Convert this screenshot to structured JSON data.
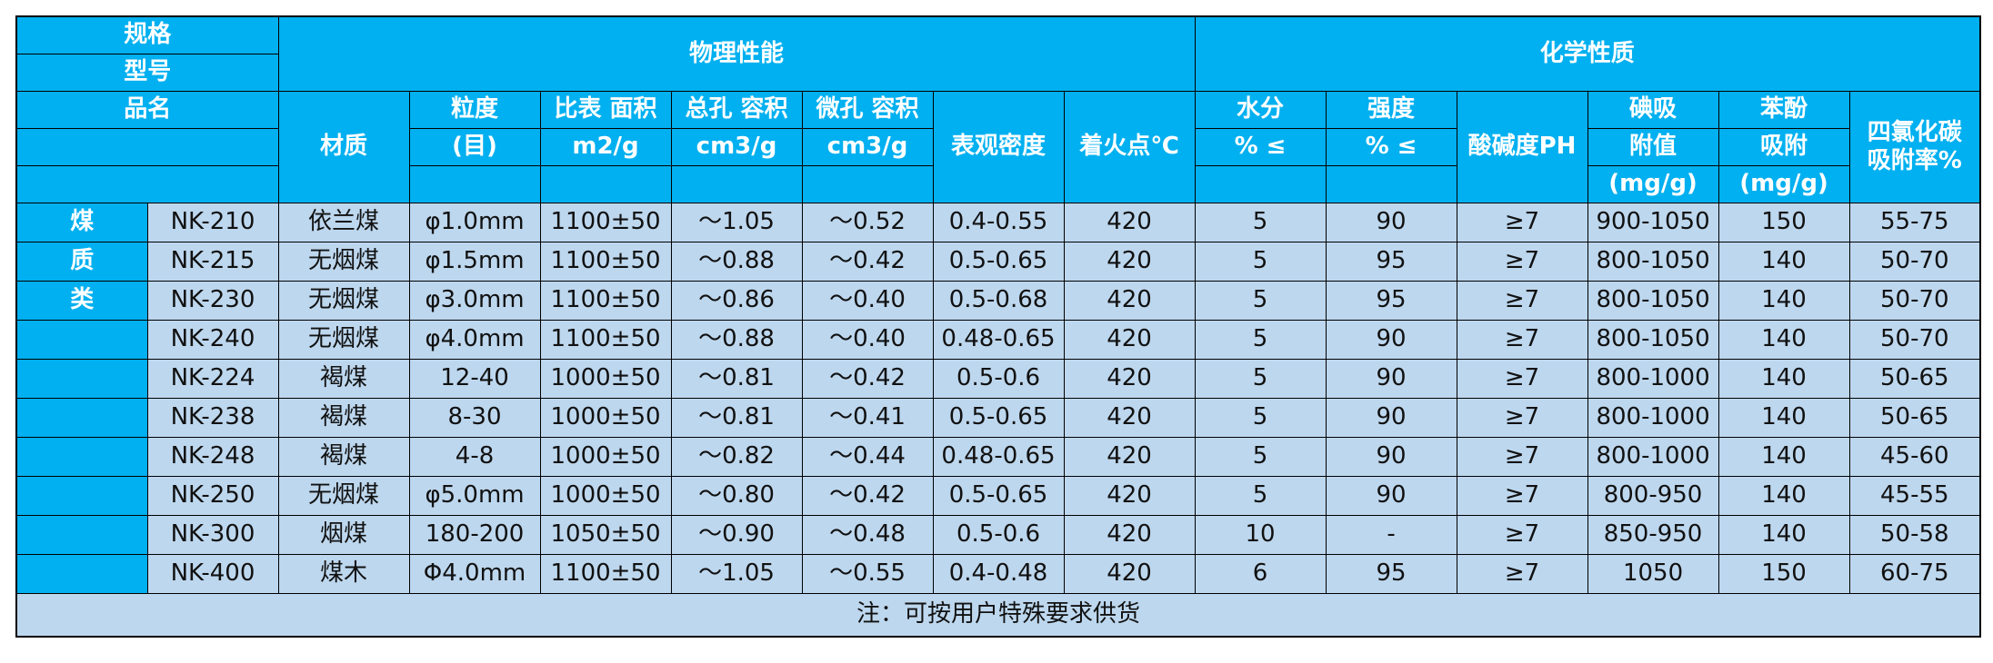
{
  "header": {
    "corner": [
      "规格",
      "型号",
      "品名"
    ],
    "groups": [
      "物理性能",
      "化学性质"
    ],
    "columns": [
      [
        "材质"
      ],
      [
        "粒度",
        "(目)"
      ],
      [
        "比表 面积",
        "m2/g"
      ],
      [
        "总孔 容积",
        "cm3/g"
      ],
      [
        "微孔 容积",
        "cm3/g"
      ],
      [
        "表观密度"
      ],
      [
        "着火点℃"
      ],
      [
        "水分",
        "% ≤"
      ],
      [
        "强度",
        "% ≤"
      ],
      [
        "酸碱度PH"
      ],
      [
        "碘吸",
        "附值",
        "(mg/g)"
      ],
      [
        "苯酚",
        "吸附",
        "(mg/g)"
      ],
      [
        "四氯化碳",
        "吸附率%"
      ]
    ]
  },
  "table": {
    "category": [
      "煤",
      "质",
      "类"
    ],
    "rows": [
      [
        "NK-210",
        "依兰煤",
        "φ1.0mm",
        "1100±50",
        "～1.05",
        "～0.52",
        "0.4-0.55",
        "420",
        "5",
        "90",
        "≥7",
        "900-1050",
        "150",
        "55-75"
      ],
      [
        "NK-215",
        "无烟煤",
        "φ1.5mm",
        "1100±50",
        "～0.88",
        "～0.42",
        "0.5-0.65",
        "420",
        "5",
        "95",
        "≥7",
        "800-1050",
        "140",
        "50-70"
      ],
      [
        "NK-230",
        "无烟煤",
        "φ3.0mm",
        "1100±50",
        "～0.86",
        "～0.40",
        "0.5-0.68",
        "420",
        "5",
        "95",
        "≥7",
        "800-1050",
        "140",
        "50-70"
      ],
      [
        "NK-240",
        "无烟煤",
        "φ4.0mm",
        "1100±50",
        "～0.88",
        "～0.40",
        "0.48-0.65",
        "420",
        "5",
        "90",
        "≥7",
        "800-1050",
        "140",
        "50-70"
      ],
      [
        "NK-224",
        "褐煤",
        "12-40",
        "1000±50",
        "～0.81",
        "～0.42",
        "0.5-0.6",
        "420",
        "5",
        "90",
        "≥7",
        "800-1000",
        "140",
        "50-65"
      ],
      [
        "NK-238",
        "褐煤",
        "8-30",
        "1000±50",
        "～0.81",
        "～0.41",
        "0.5-0.65",
        "420",
        "5",
        "90",
        "≥7",
        "800-1000",
        "140",
        "50-65"
      ],
      [
        "NK-248",
        "褐煤",
        "4-8",
        "1000±50",
        "～0.82",
        "～0.44",
        "0.48-0.65",
        "420",
        "5",
        "90",
        "≥7",
        "800-1000",
        "140",
        "45-60"
      ],
      [
        "NK-250",
        "无烟煤",
        "φ5.0mm",
        "1000±50",
        "～0.80",
        "～0.42",
        "0.5-0.65",
        "420",
        "5",
        "90",
        "≥7",
        "800-950",
        "140",
        "45-55"
      ],
      [
        "NK-300",
        "烟煤",
        "180-200",
        "1050±50",
        "～0.90",
        "～0.48",
        "0.5-0.6",
        "420",
        "10",
        "-",
        "≥7",
        "850-950",
        "140",
        "50-58"
      ],
      [
        "NK-400",
        "煤木",
        "Φ4.0mm",
        "1100±50",
        "～1.05",
        "～0.55",
        "0.4-0.48",
        "420",
        "6",
        "95",
        "≥7",
        "1050",
        "150",
        "60-75"
      ]
    ],
    "footer": "注：可按用户特殊要求供货"
  }
}
